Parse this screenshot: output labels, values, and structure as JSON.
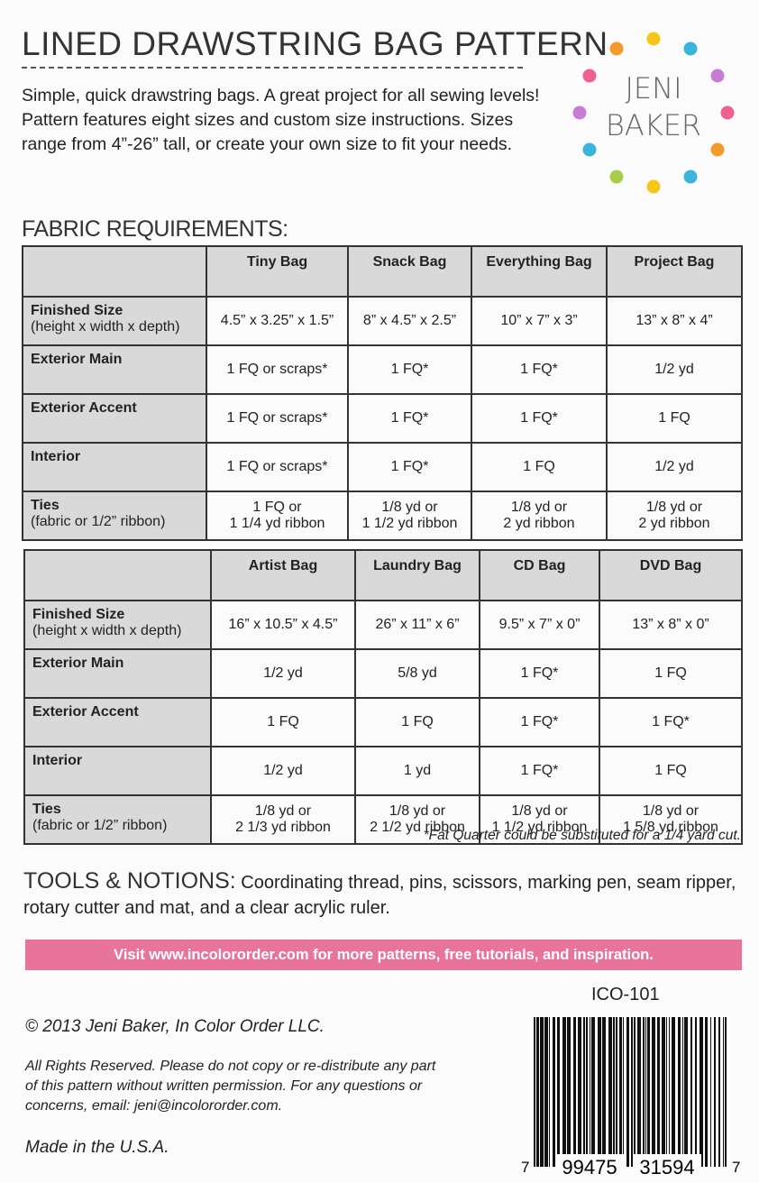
{
  "header": {
    "title": "LINED DRAWSTRING BAG PATTERN",
    "description": "Simple, quick drawstring bags. A great project for all sewing levels! Pattern features eight sizes and custom size instructions. Sizes range from 4”-26” tall, or create your own size to fit your needs.",
    "logo": {
      "line1": "JENI",
      "line2": "BAKER"
    }
  },
  "fabric": {
    "heading": "FABRIC REQUIREMENTS:",
    "tables": [
      {
        "columns": [
          "Tiny Bag",
          "Snack Bag",
          "Everything Bag",
          "Project Bag"
        ],
        "rows": [
          {
            "label": "Finished Size",
            "note": "(height x width x depth)",
            "cells": [
              [
                "4.5” x 3.25” x 1.5”"
              ],
              [
                "8” x 4.5” x 2.5”"
              ],
              [
                "10” x 7” x 3”"
              ],
              [
                "13” x 8” x 4”"
              ]
            ]
          },
          {
            "label": "Exterior Main",
            "cells": [
              [
                "1 FQ or scraps*"
              ],
              [
                "1 FQ*"
              ],
              [
                "1 FQ*"
              ],
              [
                "1/2 yd"
              ]
            ]
          },
          {
            "label": "Exterior Accent",
            "cells": [
              [
                "1 FQ or scraps*"
              ],
              [
                "1 FQ*"
              ],
              [
                "1 FQ*"
              ],
              [
                "1 FQ"
              ]
            ]
          },
          {
            "label": "Interior",
            "cells": [
              [
                "1 FQ or scraps*"
              ],
              [
                "1 FQ*"
              ],
              [
                "1 FQ"
              ],
              [
                "1/2 yd"
              ]
            ]
          },
          {
            "label": "Ties",
            "note": "(fabric or 1/2” ribbon)",
            "cells": [
              [
                "1 FQ or",
                "1 1/4 yd ribbon"
              ],
              [
                "1/8 yd or",
                "1 1/2 yd ribbon"
              ],
              [
                "1/8 yd or",
                "2 yd ribbon"
              ],
              [
                "1/8 yd or",
                "2 yd ribbon"
              ]
            ]
          }
        ]
      },
      {
        "columns": [
          "Artist Bag",
          "Laundry Bag",
          "CD Bag",
          "DVD Bag"
        ],
        "rows": [
          {
            "label": "Finished Size",
            "note": "(height x width x depth)",
            "cells": [
              [
                "16” x 10.5” x 4.5”"
              ],
              [
                "26” x 11” x 6”"
              ],
              [
                "9.5” x 7” x 0”"
              ],
              [
                "13” x 8” x 0”"
              ]
            ]
          },
          {
            "label": "Exterior Main",
            "cells": [
              [
                "1/2 yd"
              ],
              [
                "5/8 yd"
              ],
              [
                "1 FQ*"
              ],
              [
                "1 FQ"
              ]
            ]
          },
          {
            "label": "Exterior Accent",
            "cells": [
              [
                "1 FQ"
              ],
              [
                "1 FQ"
              ],
              [
                "1 FQ*"
              ],
              [
                "1 FQ*"
              ]
            ]
          },
          {
            "label": "Interior",
            "cells": [
              [
                "1/2 yd"
              ],
              [
                "1 yd"
              ],
              [
                "1 FQ*"
              ],
              [
                "1 FQ"
              ]
            ]
          },
          {
            "label": "Ties",
            "note": "(fabric or 1/2” ribbon)",
            "cells": [
              [
                "1/8 yd or",
                "2 1/3 yd ribbon"
              ],
              [
                "1/8 yd or",
                "2 1/2 yd ribbon"
              ],
              [
                "1/8 yd or",
                "1 1/2 yd ribbon"
              ],
              [
                "1/8 yd or",
                "1 5/8 yd ribbon"
              ]
            ]
          }
        ]
      }
    ],
    "footnote": "*Fat Quarter could be substituted for a 1/4 yard cut."
  },
  "tools": {
    "heading": "TOOLS & NOTIONS:",
    "text": "Coordinating thread, pins, scissors, marking pen, seam ripper, rotary cutter and mat, and a clear acrylic ruler."
  },
  "banner": "Visit www.incolororder.com for more patterns, free tutorials, and inspiration.",
  "footer": {
    "code": "ICO-101",
    "copyright": "© 2013 Jeni Baker, In Color Order LLC.",
    "rights": "All Rights Reserved. Please do not copy or re-distribute any part of this pattern without written permission. For any questions or concerns, email: jeni@incolororder.com.",
    "made": "Made in the U.S.A.",
    "barcode": [
      "7",
      "99475",
      "31594",
      "7"
    ]
  }
}
